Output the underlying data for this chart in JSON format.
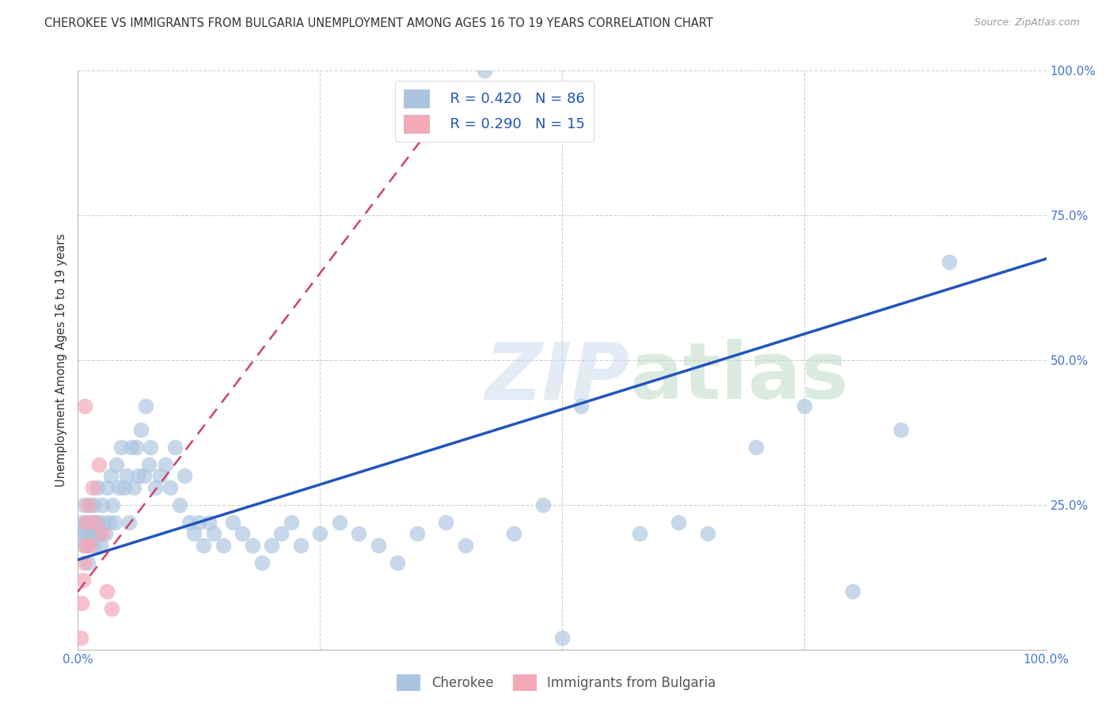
{
  "title": "CHEROKEE VS IMMIGRANTS FROM BULGARIA UNEMPLOYMENT AMONG AGES 16 TO 19 YEARS CORRELATION CHART",
  "source": "Source: ZipAtlas.com",
  "ylabel": "Unemployment Among Ages 16 to 19 years",
  "xlim": [
    0,
    1.0
  ],
  "ylim": [
    0,
    1.0
  ],
  "background_color": "#ffffff",
  "legend_r1": "R = 0.420",
  "legend_n1": "N = 86",
  "legend_r2": "R = 0.290",
  "legend_n2": "N = 15",
  "blue_color": "#aac4e0",
  "blue_line_color": "#2255bb",
  "pink_color": "#f4a8b8",
  "pink_line_color": "#cc4466",
  "legend_text_color": "#2255bb",
  "title_color": "#333333",
  "axis_label_color": "#333333",
  "tick_color": "#4477cc",
  "grid_color": "#cccccc",
  "cherokee_x": [
    0.003,
    0.004,
    0.005,
    0.006,
    0.007,
    0.008,
    0.009,
    0.01,
    0.011,
    0.012,
    0.013,
    0.014,
    0.015,
    0.016,
    0.017,
    0.018,
    0.019,
    0.02,
    0.022,
    0.023,
    0.025,
    0.026,
    0.028,
    0.03,
    0.032,
    0.034,
    0.036,
    0.038,
    0.04,
    0.042,
    0.045,
    0.048,
    0.05,
    0.053,
    0.055,
    0.058,
    0.06,
    0.063,
    0.065,
    0.068,
    0.07,
    0.073,
    0.075,
    0.08,
    0.085,
    0.09,
    0.095,
    0.1,
    0.105,
    0.11,
    0.115,
    0.12,
    0.125,
    0.13,
    0.135,
    0.14,
    0.15,
    0.16,
    0.17,
    0.18,
    0.19,
    0.2,
    0.21,
    0.22,
    0.23,
    0.25,
    0.27,
    0.29,
    0.31,
    0.33,
    0.35,
    0.38,
    0.4,
    0.42,
    0.45,
    0.48,
    0.5,
    0.52,
    0.58,
    0.62,
    0.65,
    0.7,
    0.75,
    0.8,
    0.85,
    0.9
  ],
  "cherokee_y": [
    0.22,
    0.2,
    0.18,
    0.25,
    0.2,
    0.22,
    0.18,
    0.15,
    0.2,
    0.22,
    0.25,
    0.2,
    0.22,
    0.18,
    0.25,
    0.2,
    0.22,
    0.28,
    0.2,
    0.18,
    0.25,
    0.22,
    0.2,
    0.28,
    0.22,
    0.3,
    0.25,
    0.22,
    0.32,
    0.28,
    0.35,
    0.28,
    0.3,
    0.22,
    0.35,
    0.28,
    0.35,
    0.3,
    0.38,
    0.3,
    0.42,
    0.32,
    0.35,
    0.28,
    0.3,
    0.32,
    0.28,
    0.35,
    0.25,
    0.3,
    0.22,
    0.2,
    0.22,
    0.18,
    0.22,
    0.2,
    0.18,
    0.22,
    0.2,
    0.18,
    0.15,
    0.18,
    0.2,
    0.22,
    0.18,
    0.2,
    0.22,
    0.2,
    0.18,
    0.15,
    0.2,
    0.22,
    0.18,
    1.0,
    0.2,
    0.25,
    0.02,
    0.42,
    0.2,
    0.22,
    0.2,
    0.35,
    0.42,
    0.1,
    0.38,
    0.67
  ],
  "bulgaria_x": [
    0.003,
    0.004,
    0.005,
    0.006,
    0.007,
    0.008,
    0.009,
    0.01,
    0.012,
    0.015,
    0.018,
    0.022,
    0.025,
    0.03,
    0.035
  ],
  "bulgaria_y": [
    0.02,
    0.08,
    0.12,
    0.15,
    0.42,
    0.18,
    0.22,
    0.25,
    0.18,
    0.28,
    0.22,
    0.32,
    0.2,
    0.1,
    0.07
  ],
  "blue_line_x0": 0.0,
  "blue_line_y0": 0.155,
  "blue_line_x1": 1.0,
  "blue_line_y1": 0.675,
  "pink_line_x0": 0.0,
  "pink_line_y0": 0.1,
  "pink_line_x1": 0.4,
  "pink_line_y1": 0.98
}
